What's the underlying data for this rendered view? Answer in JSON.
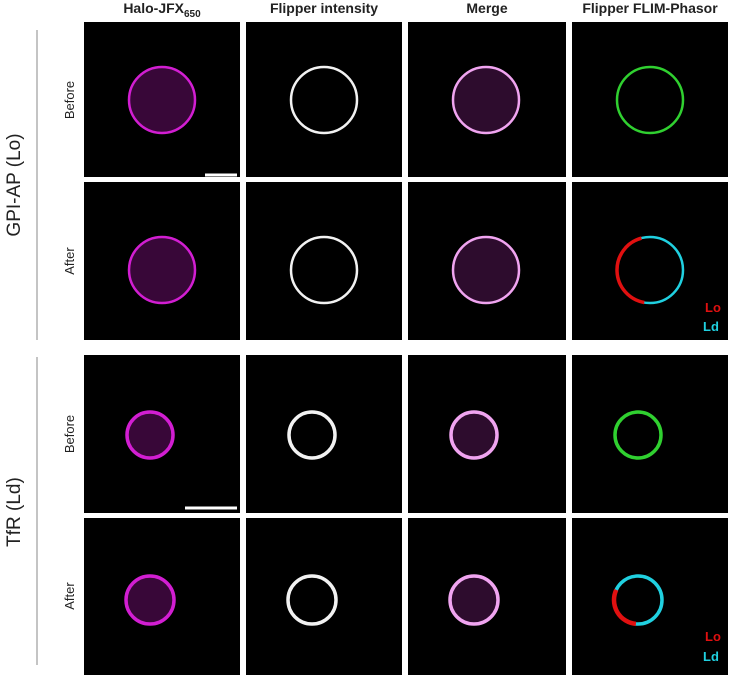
{
  "header": {
    "columns": [
      {
        "title": "Halo-JFX",
        "subscript": "650"
      },
      {
        "title": "Flipper intensity"
      },
      {
        "title": "Merge"
      },
      {
        "title": "Flipper FLIM-Phasor"
      }
    ]
  },
  "groups": [
    {
      "label": "GPI-AP (Lo)",
      "rows": [
        {
          "label": "Before"
        },
        {
          "label": "After"
        }
      ],
      "legend": [
        "Lo",
        "Ld"
      ]
    },
    {
      "label": "TfR (Ld)",
      "rows": [
        {
          "label": "Before"
        },
        {
          "label": "After"
        }
      ],
      "legend": [
        "Lo",
        "Ld"
      ]
    }
  ]
}
